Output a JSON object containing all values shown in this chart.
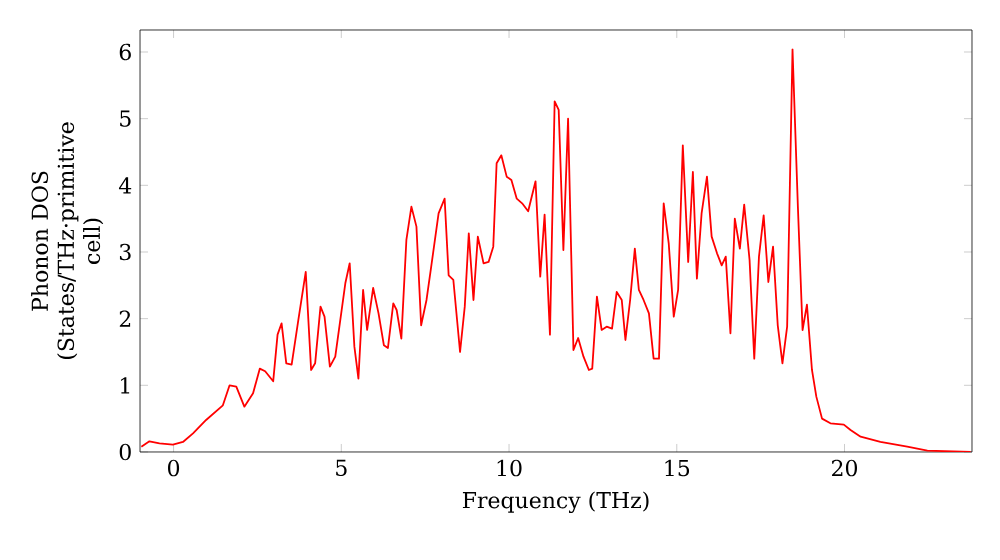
{
  "chart_data": {
    "type": "line",
    "xlabel": "Frequency (THz)",
    "ylabel": "Phonon DOS (States/THz·primitive cell)",
    "color": "#ff0000",
    "x": [
      -0.96,
      -0.72,
      -0.42,
      -0.02,
      0.28,
      0.58,
      0.97,
      1.47,
      1.67,
      1.87,
      2.11,
      2.37,
      2.57,
      2.73,
      2.97,
      3.1,
      3.22,
      3.36,
      3.52,
      3.72,
      3.94,
      4.1,
      4.22,
      4.38,
      4.5,
      4.66,
      4.82,
      5.12,
      5.25,
      5.39,
      5.51,
      5.65,
      5.77,
      5.95,
      6.11,
      6.27,
      6.39,
      6.55,
      6.65,
      6.79,
      6.94,
      7.09,
      7.24,
      7.38,
      7.54,
      7.68,
      7.9,
      8.08,
      8.2,
      8.34,
      8.54,
      8.68,
      8.8,
      8.94,
      9.07,
      9.24,
      9.39,
      9.53,
      9.63,
      9.77,
      9.93,
      10.07,
      10.23,
      10.39,
      10.57,
      10.79,
      10.93,
      11.06,
      11.22,
      11.36,
      11.48,
      11.62,
      11.76,
      11.92,
      12.06,
      12.22,
      12.38,
      12.48,
      12.62,
      12.76,
      12.91,
      13.07,
      13.21,
      13.36,
      13.47,
      13.61,
      13.75,
      13.87,
      14.01,
      14.17,
      14.31,
      14.47,
      14.61,
      14.76,
      14.91,
      15.04,
      15.18,
      15.34,
      15.48,
      15.6,
      15.74,
      15.9,
      16.04,
      16.2,
      16.34,
      16.46,
      16.6,
      16.73,
      16.88,
      17.01,
      17.17,
      17.31,
      17.45,
      17.59,
      17.73,
      17.87,
      18.01,
      18.15,
      18.29,
      18.45,
      18.61,
      18.75,
      18.88,
      19.03,
      19.16,
      19.33,
      19.58,
      19.98,
      20.18,
      20.48,
      21.07,
      21.87,
      22.47,
      23.76
    ],
    "values": [
      0.08,
      0.16,
      0.13,
      0.11,
      0.15,
      0.28,
      0.48,
      0.7,
      1.0,
      0.98,
      0.68,
      0.88,
      1.25,
      1.21,
      1.06,
      1.76,
      1.93,
      1.33,
      1.31,
      1.98,
      2.7,
      1.23,
      1.33,
      2.18,
      2.03,
      1.28,
      1.43,
      2.53,
      2.83,
      1.58,
      1.1,
      2.43,
      1.83,
      2.46,
      2.08,
      1.6,
      1.56,
      2.23,
      2.13,
      1.7,
      3.18,
      3.68,
      3.38,
      1.9,
      2.28,
      2.78,
      3.58,
      3.8,
      2.65,
      2.58,
      1.5,
      2.18,
      3.28,
      2.28,
      3.23,
      2.83,
      2.85,
      3.08,
      4.33,
      4.45,
      4.13,
      4.08,
      3.8,
      3.73,
      3.61,
      4.06,
      2.63,
      3.56,
      1.76,
      5.26,
      5.13,
      3.03,
      5.0,
      1.53,
      1.71,
      1.43,
      1.23,
      1.25,
      2.33,
      1.83,
      1.88,
      1.85,
      2.4,
      2.28,
      1.68,
      2.28,
      3.05,
      2.43,
      2.28,
      2.08,
      1.4,
      1.4,
      3.73,
      3.13,
      2.03,
      2.43,
      4.6,
      2.85,
      4.2,
      2.6,
      3.58,
      4.13,
      3.23,
      2.98,
      2.8,
      2.93,
      1.78,
      3.5,
      3.05,
      3.71,
      2.88,
      1.4,
      2.93,
      3.55,
      2.55,
      3.08,
      1.9,
      1.33,
      1.88,
      6.04,
      3.68,
      1.83,
      2.21,
      1.23,
      0.83,
      0.5,
      0.43,
      0.41,
      0.33,
      0.23,
      0.15,
      0.08,
      0.02,
      0.0
    ],
    "xlim": [
      -1.0,
      23.8
    ],
    "ylim": [
      0,
      6.33
    ],
    "xticks": [
      0,
      5,
      10,
      15,
      20
    ],
    "yticks": [
      0,
      1,
      2,
      3,
      4,
      5,
      6
    ],
    "line_style": "solid"
  }
}
